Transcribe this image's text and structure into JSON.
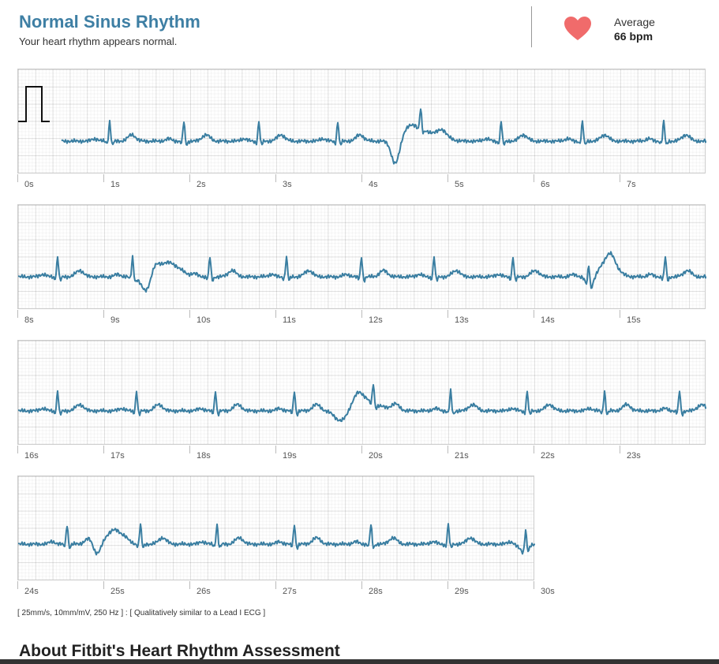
{
  "header": {
    "title": "Normal Sinus Rhythm",
    "subtitle": "Your heart rhythm appears normal.",
    "average_label": "Average",
    "average_value": "66 bpm",
    "heart_color": "#f06b6b",
    "accent_color": "#3e7fa4"
  },
  "ecg": {
    "trace_color": "#3a7ea1",
    "strips": [
      {
        "seconds": [
          "0s",
          "1s",
          "2s",
          "3s",
          "4s",
          "5s",
          "6s",
          "7s"
        ]
      },
      {
        "seconds": [
          "8s",
          "9s",
          "10s",
          "11s",
          "12s",
          "13s",
          "14s",
          "15s"
        ]
      },
      {
        "seconds": [
          "16s",
          "17s",
          "18s",
          "19s",
          "20s",
          "21s",
          "22s",
          "23s"
        ]
      },
      {
        "seconds": [
          "24s",
          "25s",
          "26s",
          "27s",
          "28s",
          "29s",
          "30s"
        ]
      }
    ]
  },
  "footnote": "[ 25mm/s, 10mm/mV, 250 Hz ] : [ Qualitatively similar to a Lead I ECG ]",
  "about_heading": "About Fitbit's Heart Rhythm Assessment"
}
